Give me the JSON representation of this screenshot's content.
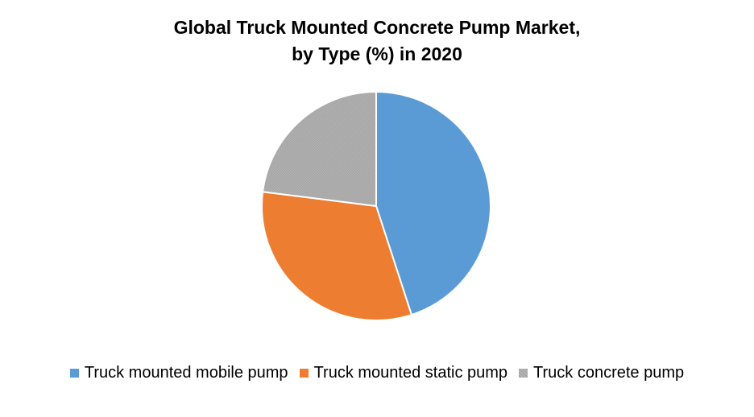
{
  "chart_data": {
    "type": "pie",
    "title": "Global Truck Mounted Concrete Pump Market, by Type (%) in 2020",
    "title_lines": [
      "Global Truck Mounted Concrete Pump Market,",
      "by Type (%) in 2020"
    ],
    "categories": [
      "Truck mounted mobile pump",
      "Truck mounted static pump",
      "Truck concrete pump"
    ],
    "values": [
      45,
      32,
      23
    ],
    "colors": [
      "#5b9bd5",
      "#ed7d31",
      "#a5a5a5"
    ],
    "legend_position": "bottom",
    "start_angle_deg": 0,
    "direction": "clockwise"
  }
}
